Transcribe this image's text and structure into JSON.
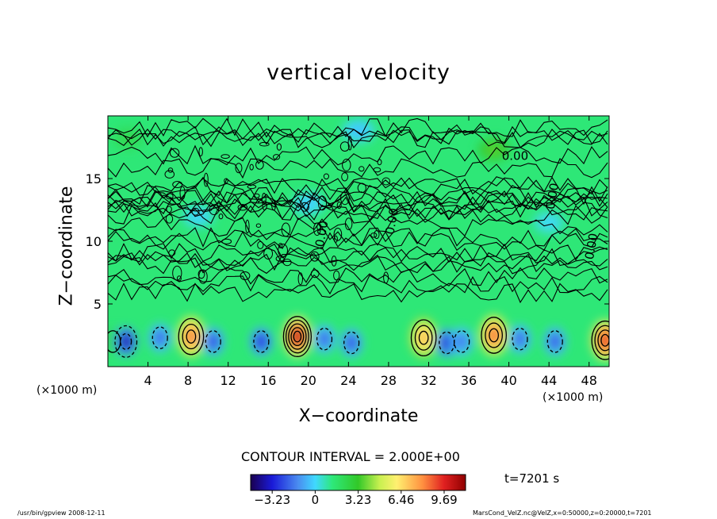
{
  "chart_data": {
    "type": "heatmap",
    "title": "vertical velocity",
    "xlabel": "X−coordinate",
    "ylabel": "Z−coordinate",
    "x_unit_left": "(×1000 m)",
    "x_unit_right": "(×1000 m)",
    "xlim": [
      0,
      50
    ],
    "ylim": [
      0,
      20
    ],
    "x_ticks": [
      4,
      8,
      12,
      16,
      20,
      24,
      28,
      32,
      36,
      40,
      44,
      48
    ],
    "y_ticks": [
      5,
      10,
      15
    ],
    "contour_labels": [
      "0.00",
      "0.00",
      "0.00",
      "0.00",
      "0.00"
    ],
    "contour_interval": "CONTOUR INTERVAL = 2.000E+00",
    "time": "t=7201 s",
    "colorbar": {
      "range": [
        -4.85,
        11.3
      ],
      "ticks": [
        "−3.23",
        "0",
        "3.23",
        "6.46",
        "9.69"
      ],
      "tick_values": [
        -3.23,
        0,
        3.23,
        6.46,
        9.69
      ]
    },
    "cells": [
      {
        "x": 0.5,
        "z": 2.0,
        "w": 0.8
      },
      {
        "x": 1.8,
        "z": 2.0,
        "w": -4.2
      },
      {
        "x": 5.2,
        "z": 2.3,
        "w": -2.6
      },
      {
        "x": 8.3,
        "z": 2.4,
        "w": 7.5
      },
      {
        "x": 10.5,
        "z": 2.0,
        "w": -3.0
      },
      {
        "x": 15.3,
        "z": 2.0,
        "w": -3.4
      },
      {
        "x": 18.9,
        "z": 2.4,
        "w": 10.2
      },
      {
        "x": 21.6,
        "z": 2.2,
        "w": -2.6
      },
      {
        "x": 24.3,
        "z": 1.9,
        "w": -2.9
      },
      {
        "x": 31.5,
        "z": 2.3,
        "w": 6.0
      },
      {
        "x": 33.8,
        "z": 1.9,
        "w": -3.6
      },
      {
        "x": 35.3,
        "z": 2.0,
        "w": -2.4
      },
      {
        "x": 38.5,
        "z": 2.5,
        "w": 7.7
      },
      {
        "x": 41.1,
        "z": 2.2,
        "w": -2.6
      },
      {
        "x": 44.6,
        "z": 2.0,
        "w": -2.8
      },
      {
        "x": 49.6,
        "z": 2.1,
        "w": 9.0
      },
      {
        "x": 38.5,
        "z": 17.3,
        "w": 1.8
      },
      {
        "x": 25.0,
        "z": 18.8,
        "w": -1.2
      },
      {
        "x": 2.0,
        "z": 18.2,
        "w": 0.7
      },
      {
        "x": 20.0,
        "z": 13.0,
        "w": -1.0
      },
      {
        "x": 9.0,
        "z": 12.0,
        "w": -0.9
      },
      {
        "x": 44.0,
        "z": 11.5,
        "w": -0.8
      }
    ]
  },
  "footer": {
    "left": "/usr/bin/gpview   2008-12-11",
    "right": "MarsCond_VelZ.nc@VelZ,x=0:50000,z=0:20000,t=7201"
  }
}
